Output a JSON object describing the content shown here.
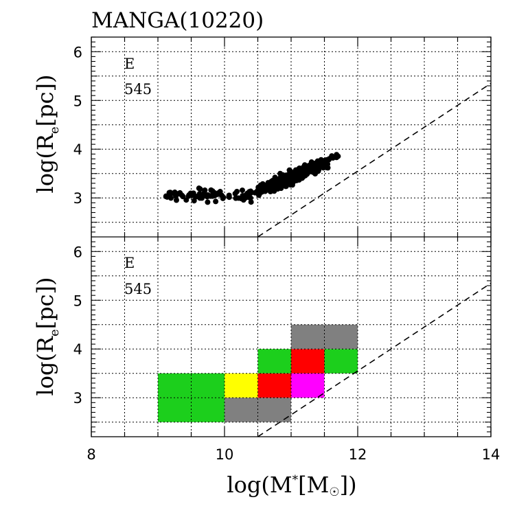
{
  "chart_data": [
    {
      "type": "scatter",
      "title": "MANGA(10220)",
      "annotation_type": "E",
      "annotation_count": "545",
      "xlabel": "log(M*[M☉])",
      "ylabel": "log(R_e[pc])",
      "xlim": [
        8,
        14
      ],
      "ylim": [
        2.2,
        6.3
      ],
      "x_ticks": [
        "8",
        "10",
        "12",
        "14"
      ],
      "y_ticks": [
        "3",
        "4",
        "5",
        "6"
      ],
      "grid": true,
      "reference_line": {
        "style": "dashed",
        "x": [
          10.5,
          14
        ],
        "y": [
          2.2,
          5.35
        ]
      },
      "point_seed": 10220,
      "point_count": 545
    },
    {
      "type": "heatmap",
      "annotation_type": "E",
      "annotation_count": "545",
      "xlabel": "log(M*[M☉])",
      "ylabel": "log(R_e[pc])",
      "xlim": [
        8,
        14
      ],
      "ylim": [
        2.2,
        6.3
      ],
      "x_ticks": [
        "8",
        "10",
        "12",
        "14"
      ],
      "y_ticks": [
        "3",
        "4",
        "5",
        "6"
      ],
      "grid": true,
      "reference_line": {
        "style": "dashed",
        "x": [
          10.5,
          14
        ],
        "y": [
          2.2,
          5.35
        ]
      },
      "cells": [
        {
          "x0": 9.0,
          "x1": 10.0,
          "y0": 2.5,
          "y1": 3.5,
          "color": "#1ccf1c"
        },
        {
          "x0": 10.0,
          "x1": 10.5,
          "y0": 3.0,
          "y1": 3.5,
          "color": "#ffff00"
        },
        {
          "x0": 10.0,
          "x1": 11.0,
          "y0": 2.5,
          "y1": 3.0,
          "color": "#808080"
        },
        {
          "x0": 10.5,
          "x1": 11.0,
          "y0": 3.0,
          "y1": 3.5,
          "color": "#ff0000"
        },
        {
          "x0": 10.5,
          "x1": 11.0,
          "y0": 3.5,
          "y1": 4.0,
          "color": "#1ccf1c"
        },
        {
          "x0": 11.0,
          "x1": 11.5,
          "y0": 3.0,
          "y1": 3.5,
          "color": "#ff00ff"
        },
        {
          "x0": 11.0,
          "x1": 11.5,
          "y0": 3.5,
          "y1": 4.0,
          "color": "#ff0000"
        },
        {
          "x0": 11.5,
          "x1": 12.0,
          "y0": 3.5,
          "y1": 4.0,
          "color": "#1ccf1c"
        },
        {
          "x0": 11.0,
          "x1": 12.0,
          "y0": 4.0,
          "y1": 4.5,
          "color": "#808080"
        }
      ]
    }
  ]
}
